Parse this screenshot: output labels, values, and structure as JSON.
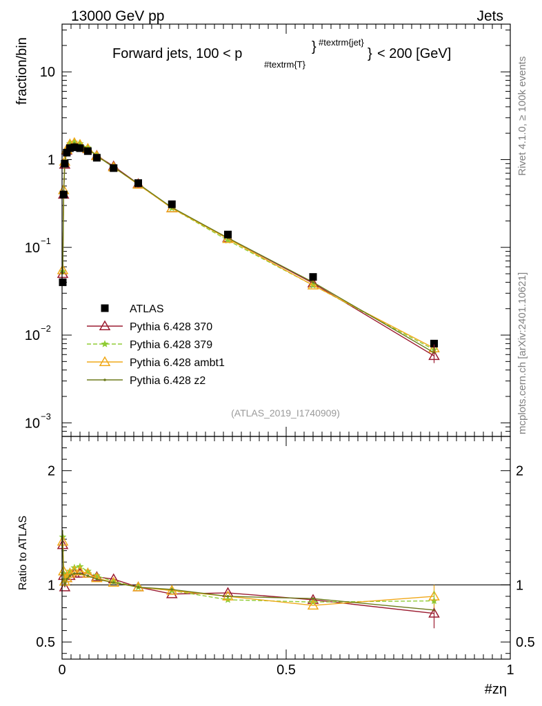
{
  "header": {
    "energy_label": "13000 GeV pp",
    "process_label": "Jets"
  },
  "side_labels": {
    "rivet": "Rivet 4.1.0, ≥ 100k events",
    "mcplots": "mcplots.cern.ch [arXiv:2401.10621]"
  },
  "watermark": "(ATLAS_2019_I1740909)",
  "colors": {
    "atlas": "#000000",
    "p370": "#9b1b30",
    "p379": "#8fcc33",
    "ambt1": "#f0a818",
    "z2": "#6b7a1a"
  },
  "chart_data": [
    {
      "type": "scatter",
      "panel": "main",
      "title": "Forward jets, 100 < p_{#textrm{T}}^{#textrm{jet}} < 200 [GeV]",
      "title_parts": {
        "left": "Forward jets, 100 < p",
        "sub": "#textrm{T}",
        "sup": "#textrm{jet}",
        "right": "< 200 [GeV]"
      },
      "xlabel": "#zη",
      "ylabel": "fraction/bin",
      "yscale": "log",
      "xlim": [
        0,
        1
      ],
      "ylim": [
        0.0007,
        35
      ],
      "y_ticks": [
        {
          "value": 10,
          "base": "10",
          "exp": ""
        },
        {
          "value": 1,
          "base": "1",
          "exp": ""
        },
        {
          "value": 0.1,
          "base": "10",
          "exp": "−1"
        },
        {
          "value": 0.01,
          "base": "10",
          "exp": "−2"
        },
        {
          "value": 0.001,
          "base": "10",
          "exp": "−3"
        }
      ],
      "x": [
        0.0015,
        0.0035,
        0.006,
        0.0105,
        0.0175,
        0.0275,
        0.04,
        0.0575,
        0.0775,
        0.115,
        0.17,
        0.245,
        0.37,
        0.56,
        0.83
      ],
      "series": [
        {
          "name": "ATLAS",
          "key": "atlas",
          "style": "square",
          "values": [
            0.04,
            0.4,
            0.9,
            1.2,
            1.35,
            1.38,
            1.35,
            1.25,
            1.05,
            0.8,
            0.54,
            0.31,
            0.14,
            0.046,
            0.008
          ]
        },
        {
          "name": "Pythia 6.428 370",
          "key": "p370",
          "style": "triangle-open",
          "values": [
            0.05,
            0.4,
            0.88,
            1.27,
            1.45,
            1.52,
            1.45,
            1.32,
            1.11,
            0.84,
            0.53,
            0.28,
            0.128,
            0.039,
            0.0058
          ]
        },
        {
          "name": "Pythia 6.428 379",
          "key": "p379",
          "style": "star-dashed",
          "values": [
            0.053,
            0.42,
            0.93,
            1.28,
            1.52,
            1.58,
            1.52,
            1.36,
            1.12,
            0.82,
            0.52,
            0.28,
            0.12,
            0.037,
            0.0068
          ]
        },
        {
          "name": "Pythia 6.428 ambt1",
          "key": "ambt1",
          "style": "triangle-open",
          "values": [
            0.055,
            0.45,
            0.95,
            1.3,
            1.5,
            1.55,
            1.48,
            1.33,
            1.1,
            0.82,
            0.52,
            0.28,
            0.125,
            0.037,
            0.0071
          ]
        },
        {
          "name": "Pythia 6.428 z2",
          "key": "z2",
          "style": "dot",
          "values": [
            0.051,
            0.41,
            0.9,
            1.26,
            1.47,
            1.53,
            1.47,
            1.33,
            1.1,
            0.82,
            0.53,
            0.285,
            0.128,
            0.04,
            0.0063
          ]
        }
      ]
    },
    {
      "type": "line",
      "panel": "ratio",
      "xlabel": "#zη",
      "ylabel": "Ratio to ATLAS",
      "xlim": [
        0,
        1
      ],
      "ylim": [
        0.35,
        2.3
      ],
      "y_ticks": [
        0.5,
        1,
        2
      ],
      "x_ticks": [
        0,
        0.5,
        1
      ],
      "x_tick_labels": [
        "0",
        "0.5",
        "1"
      ],
      "reference": 1,
      "x": [
        0.0015,
        0.0035,
        0.006,
        0.0105,
        0.0175,
        0.0275,
        0.04,
        0.0575,
        0.0775,
        0.115,
        0.17,
        0.245,
        0.37,
        0.56,
        0.83
      ],
      "series": [
        {
          "name": "Pythia 6.428 370",
          "key": "p370",
          "style": "triangle-open",
          "values": [
            1.35,
            1.08,
            0.98,
            1.06,
            1.08,
            1.1,
            1.1,
            1.1,
            1.07,
            1.05,
            0.98,
            0.92,
            0.93,
            0.87,
            0.75
          ]
        },
        {
          "name": "Pythia 6.428 379",
          "key": "p379",
          "style": "star-dashed",
          "values": [
            1.42,
            1.1,
            1.04,
            1.08,
            1.12,
            1.15,
            1.16,
            1.12,
            1.08,
            1.03,
            0.98,
            0.95,
            0.87,
            0.85,
            0.86
          ]
        },
        {
          "name": "Pythia 6.428 ambt1",
          "key": "ambt1",
          "style": "triangle-open",
          "values": [
            1.38,
            1.12,
            1.03,
            1.06,
            1.1,
            1.12,
            1.12,
            1.1,
            1.06,
            1.02,
            0.98,
            0.95,
            0.9,
            0.82,
            0.9
          ]
        },
        {
          "name": "Pythia 6.428 z2",
          "key": "z2",
          "style": "dot",
          "values": [
            1.3,
            1.05,
            1.0,
            1.05,
            1.08,
            1.1,
            1.1,
            1.08,
            1.05,
            1.02,
            0.98,
            0.96,
            0.9,
            0.88,
            0.78
          ]
        }
      ]
    }
  ]
}
